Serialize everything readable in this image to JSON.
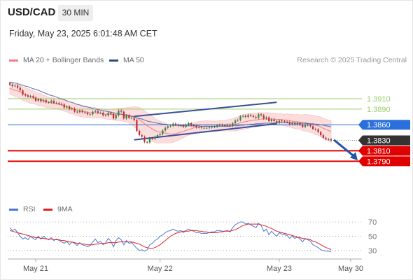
{
  "header": {
    "symbol": "USD/CAD",
    "timeframe": "30 MIN",
    "datetime": "Friday, May 23, 2025 6:01:48 AM CET",
    "credit": "Research © 2025 Trading Central"
  },
  "legend": {
    "price": [
      {
        "label": "MA 20 + Bollinger Bands",
        "color": "#f08080"
      },
      {
        "label": "MA 50",
        "color": "#2b4a8a"
      }
    ],
    "rsi": [
      {
        "label": "RSI",
        "color": "#4a78d4"
      },
      {
        "label": "9MA",
        "color": "#e02020"
      }
    ]
  },
  "colors": {
    "resistance": "#9acc6a",
    "pivot": "#2a6fdb",
    "support": "#e00000",
    "last_price": "#333333",
    "channel": "#3a4f9a",
    "candle_up": "#2e8b3a",
    "candle_down": "#cc2a2a"
  },
  "chart_data": {
    "type": "candlestick",
    "price_axis": {
      "min": 1.373,
      "max": 1.3965
    },
    "levels": [
      {
        "value": 1.391,
        "label": "1.3910",
        "kind": "resistance"
      },
      {
        "value": 1.389,
        "label": "1.3890",
        "kind": "resistance"
      },
      {
        "value": 1.386,
        "label": "1.3860",
        "kind": "pivot"
      },
      {
        "value": 1.383,
        "label": "1.3830",
        "kind": "last"
      },
      {
        "value": 1.381,
        "label": "1.3810",
        "kind": "support"
      },
      {
        "value": 1.379,
        "label": "1.3790",
        "kind": "support"
      }
    ],
    "x_labels": [
      "May 21",
      "May 22",
      "May 23",
      "May 30"
    ],
    "x_label_bars": [
      10,
      58,
      104,
      122
    ],
    "bar_count": 125,
    "close": [
      1.3937,
      1.3934,
      1.3935,
      1.3931,
      1.3926,
      1.3918,
      1.3916,
      1.3914,
      1.3915,
      1.3912,
      1.3906,
      1.3909,
      1.3905,
      1.3907,
      1.3903,
      1.3903,
      1.3906,
      1.3902,
      1.3902,
      1.39,
      1.3899,
      1.3893,
      1.3895,
      1.389,
      1.3891,
      1.3885,
      1.3884,
      1.3887,
      1.3884,
      1.3883,
      1.388,
      1.388,
      1.3885,
      1.3886,
      1.3883,
      1.3883,
      1.3878,
      1.3878,
      1.3883,
      1.3881,
      1.3872,
      1.3878,
      1.3887,
      1.3885,
      1.3872,
      1.3878,
      1.3873,
      1.3873,
      1.3869,
      1.3848,
      1.384,
      1.3837,
      1.3827,
      1.3826,
      1.3834,
      1.3833,
      1.3837,
      1.384,
      1.3842,
      1.3849,
      1.3854,
      1.3857,
      1.3858,
      1.3862,
      1.386,
      1.3858,
      1.3859,
      1.3856,
      1.386,
      1.3863,
      1.3859,
      1.3858,
      1.3855,
      1.3855,
      1.3854,
      1.3854,
      1.3854,
      1.3855,
      1.3856,
      1.3856,
      1.3859,
      1.386,
      1.3859,
      1.3858,
      1.386,
      1.3858,
      1.3863,
      1.3868,
      1.3869,
      1.3876,
      1.3877,
      1.3875,
      1.3879,
      1.3877,
      1.3875,
      1.3873,
      1.388,
      1.3878,
      1.3872,
      1.3874,
      1.3867,
      1.387,
      1.3867,
      1.3864,
      1.3868,
      1.3867,
      1.3866,
      1.3865,
      1.3861,
      1.3863,
      1.3861,
      1.3863,
      1.386,
      1.3856,
      1.386,
      1.3859,
      1.3857,
      1.3852,
      1.3851,
      1.3846,
      1.384,
      1.3835,
      1.3832,
      1.3832,
      1.383
    ],
    "ma20": [
      1.393,
      1.3928,
      1.3926,
      1.3925,
      1.3923,
      1.392,
      1.3918,
      1.3916,
      1.3914,
      1.3913,
      1.3911,
      1.3909,
      1.3908,
      1.3906,
      1.3904,
      1.3903,
      1.3902,
      1.3901,
      1.39,
      1.3899,
      1.3898,
      1.3896,
      1.3895,
      1.3893,
      1.3892,
      1.389,
      1.3888,
      1.3887,
      1.3886,
      1.3885,
      1.3884,
      1.3883,
      1.3883,
      1.3883,
      1.3882,
      1.3882,
      1.3881,
      1.388,
      1.388,
      1.388,
      1.3879,
      1.3879,
      1.388,
      1.388,
      1.3879,
      1.3879,
      1.3878,
      1.3877,
      1.3876,
      1.3873,
      1.387,
      1.3866,
      1.3862,
      1.3858,
      1.3855,
      1.3852,
      1.3849,
      1.3847,
      1.3846,
      1.3845,
      1.3844,
      1.3843,
      1.3842,
      1.3842,
      1.3843,
      1.3844,
      1.3846,
      1.3847,
      1.3849,
      1.3851,
      1.3852,
      1.3854,
      1.3855,
      1.3856,
      1.3857,
      1.3857,
      1.3858,
      1.3857,
      1.3857,
      1.3857,
      1.3857,
      1.3858,
      1.3858,
      1.3858,
      1.3859,
      1.3859,
      1.386,
      1.3861,
      1.3862,
      1.3864,
      1.3865,
      1.3866,
      1.3867,
      1.3868,
      1.3869,
      1.3869,
      1.387,
      1.3871,
      1.3871,
      1.3871,
      1.3871,
      1.3871,
      1.3871,
      1.387,
      1.387,
      1.387,
      1.3869,
      1.3869,
      1.3868,
      1.3867,
      1.3866,
      1.3866,
      1.3865,
      1.3864,
      1.3864,
      1.3863,
      1.3862,
      1.3861,
      1.3859,
      1.3858,
      1.3856,
      1.3853,
      1.3851,
      1.3849,
      1.3847
    ],
    "ma50": [
      1.3942,
      1.3941,
      1.394,
      1.3939,
      1.3937,
      1.3936,
      1.3934,
      1.3933,
      1.3931,
      1.3929,
      1.3928,
      1.3926,
      1.3924,
      1.3922,
      1.392,
      1.3918,
      1.3916,
      1.3915,
      1.3913,
      1.3911,
      1.391,
      1.3908,
      1.3906,
      1.3904,
      1.3903,
      1.3901,
      1.3899,
      1.3898,
      1.3896,
      1.3895,
      1.3894,
      1.3893,
      1.3891,
      1.389,
      1.3889,
      1.3888,
      1.3887,
      1.3886,
      1.3885,
      1.3884,
      1.3883,
      1.3882,
      1.3881,
      1.388,
      1.3879,
      1.3878,
      1.3877,
      1.3876,
      1.3875,
      1.3873,
      1.3872,
      1.3871,
      1.3869,
      1.3867,
      1.3866,
      1.3865,
      1.3864,
      1.3863,
      1.3862,
      1.3861,
      1.3861,
      1.386,
      1.386,
      1.3859,
      1.3859,
      1.3859,
      1.3858,
      1.3858,
      1.3858,
      1.3858,
      1.3858,
      1.3858,
      1.3858,
      1.3858,
      1.3857,
      1.3857,
      1.3857,
      1.3857,
      1.3857,
      1.3857,
      1.3857,
      1.3857,
      1.3857,
      1.3857,
      1.3857,
      1.3857,
      1.3858,
      1.3858,
      1.3858,
      1.3859,
      1.3859,
      1.386,
      1.386,
      1.3861,
      1.3861,
      1.3862,
      1.3862,
      1.3862,
      1.3863,
      1.3863,
      1.3863,
      1.3863,
      1.3863,
      1.3864,
      1.3864,
      1.3864,
      1.3864,
      1.3864,
      1.3864,
      1.3864,
      1.3863,
      1.3863,
      1.3863,
      1.3863,
      1.3863,
      1.3862,
      1.3862,
      1.3862,
      1.3861,
      1.3861,
      1.386,
      1.3859,
      1.3858,
      1.3857,
      1.3856
    ],
    "bollinger_halfwidth": [
      0.0011,
      0.0011,
      0.0012,
      0.0012,
      0.0012,
      0.0013,
      0.0013,
      0.0013,
      0.0013,
      0.0012,
      0.0012,
      0.0012,
      0.0012,
      0.0011,
      0.0011,
      0.001,
      0.001,
      0.001,
      0.001,
      0.001,
      0.001,
      0.001,
      0.001,
      0.0011,
      0.0011,
      0.0011,
      0.0011,
      0.0011,
      0.0011,
      0.0011,
      0.0011,
      0.001,
      0.001,
      0.001,
      0.0009,
      0.0009,
      0.0009,
      0.0009,
      0.001,
      0.001,
      0.001,
      0.0011,
      0.0012,
      0.0012,
      0.0013,
      0.0014,
      0.0015,
      0.0017,
      0.0019,
      0.0021,
      0.0023,
      0.0024,
      0.0025,
      0.0025,
      0.0025,
      0.0024,
      0.0023,
      0.0022,
      0.0021,
      0.002,
      0.0019,
      0.0018,
      0.0017,
      0.0016,
      0.0015,
      0.0014,
      0.0013,
      0.0012,
      0.0011,
      0.0011,
      0.001,
      0.001,
      0.001,
      0.001,
      0.001,
      0.001,
      0.001,
      0.001,
      0.001,
      0.001,
      0.001,
      0.001,
      0.001,
      0.001,
      0.0011,
      0.0011,
      0.0012,
      0.0013,
      0.0013,
      0.0014,
      0.0014,
      0.0014,
      0.0014,
      0.0013,
      0.0013,
      0.0013,
      0.0013,
      0.0012,
      0.0012,
      0.0012,
      0.0012,
      0.0011,
      0.0011,
      0.0011,
      0.0011,
      0.0011,
      0.0011,
      0.0012,
      0.0012,
      0.0013,
      0.0013,
      0.0014,
      0.0014,
      0.0015,
      0.0016,
      0.0016,
      0.0017,
      0.0017,
      0.0018,
      0.0018,
      0.0019,
      0.0019,
      0.002,
      0.002,
      0.0021
    ],
    "channel": {
      "upper": [
        [
          48,
          1.3876
        ],
        [
          103,
          1.3903
        ]
      ],
      "lower": [
        [
          48,
          1.3831
        ],
        [
          103,
          1.3862
        ]
      ]
    },
    "rsi": {
      "axis": {
        "min": 20,
        "max": 75
      },
      "ticks": [
        70,
        50,
        30
      ],
      "values": [
        62,
        58,
        60,
        55,
        50,
        46,
        48,
        45,
        50,
        47,
        45,
        50,
        46,
        50,
        47,
        45,
        48,
        44,
        46,
        44,
        42,
        40,
        43,
        38,
        42,
        40,
        37,
        41,
        38,
        37,
        35,
        37,
        42,
        46,
        41,
        43,
        38,
        41,
        47,
        43,
        35,
        44,
        48,
        45,
        38,
        44,
        40,
        41,
        37,
        33,
        30,
        31,
        29,
        31,
        38,
        40,
        44,
        46,
        50,
        52,
        55,
        57,
        58,
        60,
        58,
        57,
        58,
        55,
        58,
        60,
        58,
        57,
        55,
        55,
        54,
        54,
        54,
        55,
        56,
        56,
        58,
        58,
        57,
        57,
        58,
        56,
        62,
        66,
        68,
        70,
        70,
        67,
        68,
        66,
        64,
        62,
        68,
        65,
        57,
        60,
        52,
        57,
        53,
        50,
        55,
        53,
        52,
        51,
        47,
        50,
        47,
        49,
        46,
        42,
        47,
        45,
        43,
        38,
        36,
        34,
        31,
        30,
        29,
        29,
        28
      ],
      "ma9": [
        58,
        57,
        56,
        55,
        54,
        53,
        52,
        51,
        50,
        49,
        48,
        48,
        47,
        47,
        46,
        46,
        46,
        45,
        45,
        45,
        44,
        44,
        43,
        42,
        42,
        41,
        40,
        40,
        39,
        39,
        38,
        38,
        38,
        39,
        39,
        40,
        40,
        40,
        41,
        41,
        41,
        41,
        42,
        42,
        42,
        42,
        42,
        42,
        41,
        40,
        39,
        37,
        35,
        34,
        33,
        33,
        34,
        36,
        38,
        41,
        44,
        47,
        50,
        52,
        54,
        55,
        56,
        57,
        57,
        57,
        58,
        58,
        58,
        57,
        57,
        56,
        56,
        55,
        55,
        55,
        55,
        56,
        56,
        57,
        57,
        57,
        58,
        59,
        61,
        63,
        65,
        66,
        67,
        67,
        67,
        67,
        67,
        66,
        65,
        64,
        62,
        61,
        59,
        57,
        56,
        55,
        54,
        53,
        52,
        51,
        50,
        49,
        48,
        47,
        46,
        46,
        45,
        43,
        42,
        40,
        38,
        36,
        34,
        33,
        31
      ]
    }
  }
}
